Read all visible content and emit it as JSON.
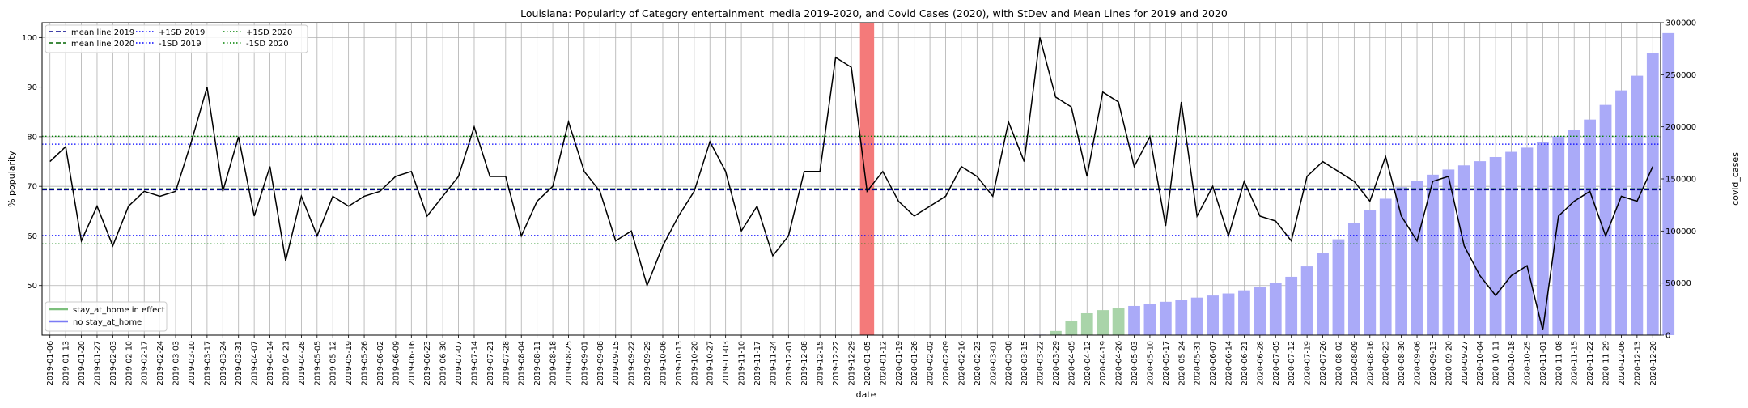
{
  "chart_data": {
    "type": "line",
    "title": "Louisiana: Popularity of Category entertainment_media 2019-2020, and Covid Cases (2020), with StDev and Mean Lines for 2019 and 2020",
    "xlabel": "date",
    "ylabel": "% popularity",
    "y2label": "covid_cases",
    "ylim": [
      40,
      103
    ],
    "y2lim": [
      0,
      300000
    ],
    "yticks": [
      50,
      60,
      70,
      80,
      90,
      100
    ],
    "y2ticks": [
      0,
      50000,
      100000,
      150000,
      200000,
      250000,
      300000
    ],
    "grid": true,
    "dates": [
      "2019-01-06",
      "2019-01-13",
      "2019-01-20",
      "2019-01-27",
      "2019-02-03",
      "2019-02-10",
      "2019-02-17",
      "2019-02-24",
      "2019-03-03",
      "2019-03-10",
      "2019-03-17",
      "2019-03-24",
      "2019-03-31",
      "2019-04-07",
      "2019-04-14",
      "2019-04-21",
      "2019-04-28",
      "2019-05-05",
      "2019-05-12",
      "2019-05-19",
      "2019-05-26",
      "2019-06-02",
      "2019-06-09",
      "2019-06-16",
      "2019-06-23",
      "2019-06-30",
      "2019-07-07",
      "2019-07-14",
      "2019-07-21",
      "2019-07-28",
      "2019-08-04",
      "2019-08-11",
      "2019-08-18",
      "2019-08-25",
      "2019-09-01",
      "2019-09-08",
      "2019-09-15",
      "2019-09-22",
      "2019-09-29",
      "2019-10-06",
      "2019-10-13",
      "2019-10-20",
      "2019-10-27",
      "2019-11-03",
      "2019-11-10",
      "2019-11-17",
      "2019-11-24",
      "2019-12-01",
      "2019-12-08",
      "2019-12-15",
      "2019-12-22",
      "2019-12-29",
      "2020-01-05",
      "2020-01-12",
      "2020-01-19",
      "2020-01-26",
      "2020-02-02",
      "2020-02-09",
      "2020-02-16",
      "2020-02-23",
      "2020-03-01",
      "2020-03-08",
      "2020-03-15",
      "2020-03-22",
      "2020-03-29",
      "2020-04-05",
      "2020-04-12",
      "2020-04-19",
      "2020-04-26",
      "2020-05-03",
      "2020-05-10",
      "2020-05-17",
      "2020-05-24",
      "2020-05-31",
      "2020-06-07",
      "2020-06-14",
      "2020-06-21",
      "2020-06-28",
      "2020-07-05",
      "2020-07-12",
      "2020-07-19",
      "2020-07-26",
      "2020-08-02",
      "2020-08-09",
      "2020-08-16",
      "2020-08-23",
      "2020-08-30",
      "2020-09-06",
      "2020-09-13",
      "2020-09-20",
      "2020-09-27",
      "2020-10-04",
      "2020-10-11",
      "2020-10-18",
      "2020-10-25",
      "2020-11-01",
      "2020-11-08",
      "2020-11-15",
      "2020-11-22",
      "2020-11-29",
      "2020-12-06",
      "2020-12-13",
      "2020-12-20"
    ],
    "popularity": [
      75,
      78,
      59,
      66,
      58,
      66,
      69,
      68,
      69,
      79,
      90,
      69,
      80,
      64,
      74,
      55,
      68,
      60,
      68,
      66,
      68,
      69,
      72,
      73,
      64,
      68,
      72,
      82,
      72,
      72,
      60,
      67,
      70,
      83,
      73,
      69,
      59,
      61,
      50,
      58,
      64,
      69,
      79,
      73,
      61,
      66,
      56,
      60,
      73,
      73,
      96,
      94,
      69,
      73,
      67,
      64,
      66,
      68,
      74,
      72,
      68,
      83,
      75,
      100,
      88,
      86,
      72,
      89,
      87,
      74,
      80,
      62,
      87,
      64,
      70,
      60,
      71,
      64,
      63,
      59,
      72,
      75,
      73,
      71,
      67,
      76,
      64,
      59,
      71,
      72,
      58,
      52,
      48,
      52,
      54,
      41,
      64,
      67,
      69,
      60,
      68,
      67,
      74
    ],
    "covid_cases": [
      null,
      null,
      null,
      null,
      null,
      null,
      null,
      null,
      null,
      null,
      null,
      null,
      null,
      null,
      null,
      null,
      null,
      null,
      null,
      null,
      null,
      null,
      null,
      null,
      null,
      null,
      null,
      null,
      null,
      null,
      null,
      null,
      null,
      null,
      null,
      null,
      null,
      null,
      null,
      null,
      null,
      null,
      null,
      null,
      null,
      null,
      null,
      null,
      null,
      null,
      null,
      null,
      null,
      null,
      null,
      null,
      null,
      null,
      null,
      null,
      null,
      null,
      100,
      500,
      4000,
      14000,
      21000,
      24000,
      26000,
      28000,
      30000,
      32000,
      34000,
      36000,
      38000,
      40000,
      43000,
      46000,
      50000,
      56000,
      66000,
      79000,
      92000,
      108000,
      120000,
      131000,
      142000,
      148000,
      154000,
      159000,
      163000,
      167000,
      171000,
      176000,
      180000,
      185000,
      191000,
      197000,
      207000,
      221000,
      235000,
      249000,
      271000,
      290000
    ],
    "stay_at_home_dates": [
      "2020-03-29",
      "2020-04-05",
      "2020-04-12",
      "2020-04-19",
      "2020-04-26"
    ],
    "highlight_date": "2020-01-05",
    "mean_2019": 69.3,
    "mean_2020": 69.5,
    "plus_1sd_2019": 78.5,
    "minus_1sd_2019": 60.1,
    "plus_1sd_2020": 80.1,
    "minus_1sd_2020": 58.4,
    "legend_lines": [
      {
        "label": "mean line 2019",
        "color": "#00008b",
        "dash": "dashed"
      },
      {
        "label": "mean line 2020",
        "color": "#006400",
        "dash": "dashed"
      },
      {
        "label": "+1SD 2019",
        "color": "#0000ff",
        "dash": "dotted"
      },
      {
        "label": "-1SD 2019",
        "color": "#0000ff",
        "dash": "dotted"
      },
      {
        "label": "+1SD 2020",
        "color": "#008000",
        "dash": "dotted"
      },
      {
        "label": "-1SD 2020",
        "color": "#008000",
        "dash": "dotted"
      }
    ],
    "legend_bars": [
      {
        "label": "stay_at_home in effect",
        "color": "#7cbf7c"
      },
      {
        "label": "no stay_at_home",
        "color": "#7b7bf5"
      }
    ],
    "colors": {
      "popularity_line": "#000000",
      "bar_no_stay": "#aaaaf8",
      "bar_stay": "#a9d4a9",
      "highlight": "#f47a7a",
      "grid": "#b0b0b0"
    }
  }
}
